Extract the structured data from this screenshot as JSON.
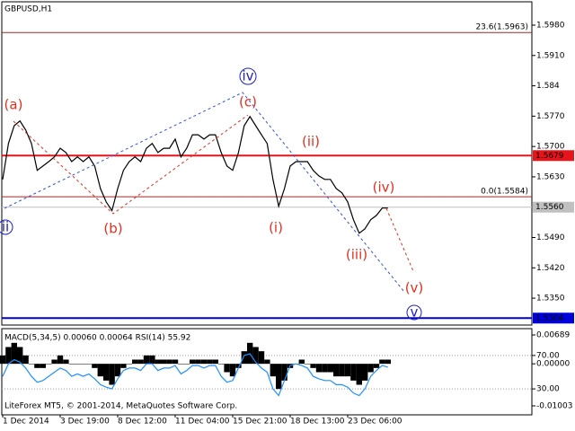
{
  "chart_data": [
    {
      "type": "line",
      "title": "GBPUSD,H1",
      "categories": [
        "1 Dec 2014",
        null,
        null,
        null,
        null,
        null,
        null,
        null,
        null,
        null,
        "3 Dec 19:00",
        null,
        null,
        null,
        null,
        null,
        null,
        null,
        null,
        null,
        "8 Dec 12:00",
        null,
        null,
        null,
        null,
        null,
        null,
        null,
        null,
        null,
        "11 Dec 04:00",
        null,
        null,
        null,
        null,
        null,
        null,
        null,
        null,
        null,
        "15 Dec 21:00",
        null,
        null,
        null,
        null,
        null,
        null,
        null,
        null,
        null,
        "18 Dec 13:00",
        null,
        null,
        null,
        null,
        null,
        null,
        null,
        null,
        null,
        "23 Dec 06:00",
        null,
        null,
        null,
        null,
        null,
        null,
        null
      ],
      "series": [
        {
          "name": "GBPUSD",
          "color": "#000000",
          "values": [
            1.5624,
            1.5707,
            1.5748,
            1.5759,
            1.5738,
            1.5707,
            1.5645,
            1.5655,
            1.5665,
            1.5676,
            1.5696,
            1.5686,
            1.5665,
            1.5676,
            1.5665,
            1.5676,
            1.5655,
            1.5603,
            1.5572,
            1.5552,
            1.5603,
            1.5645,
            1.5665,
            1.5676,
            1.5665,
            1.5696,
            1.5707,
            1.5686,
            1.5696,
            1.5696,
            1.5717,
            1.5676,
            1.5696,
            1.5727,
            1.5727,
            1.5717,
            1.5727,
            1.5727,
            1.5686,
            1.5655,
            1.5645,
            1.5686,
            1.5748,
            1.5769,
            1.5748,
            1.5727,
            1.5707,
            1.5624,
            1.5562,
            1.5603,
            1.5655,
            1.5665,
            1.5665,
            1.5665,
            1.5645,
            1.5632,
            1.5624,
            1.5624,
            1.5603,
            1.5593,
            1.5572,
            1.5531,
            1.55,
            1.551,
            1.5531,
            1.5541,
            1.5558,
            1.5558
          ]
        }
      ],
      "ylim": [
        1.5288,
        1.6038
      ],
      "yticks": [
        {
          "value": 1.598,
          "label": "1.5980"
        },
        {
          "value": 1.591,
          "label": "1.5910"
        },
        1.584,
        {
          "value": 1.577,
          "label": "1.5770"
        },
        {
          "value": 1.57,
          "label": "1.5700"
        },
        {
          "value": 1.563,
          "label": "1.5630"
        },
        {
          "value": 1.549,
          "label": "1.5490"
        },
        {
          "value": 1.542,
          "label": "1.5420"
        },
        {
          "value": 1.535,
          "label": "1.5350"
        }
      ],
      "fib_levels": [
        {
          "label": "23.6(1.5963)",
          "value": 1.5963,
          "color": "#a02828"
        },
        {
          "label": "0.0(1.5584)",
          "value": 1.5584,
          "color": "#a02828"
        }
      ],
      "price_levels": [
        {
          "value": 1.5679,
          "color": "#e8141c"
        },
        {
          "value": 1.556,
          "label": "1.5560",
          "color": "#c0c0c0"
        },
        {
          "value": 1.5304,
          "color": "#0000d8"
        }
      ],
      "annotations": [
        "(a)",
        "(b)",
        "(c)",
        "iv",
        "(ii)",
        "(i)",
        "(iii)",
        "(iv)",
        "(v)",
        "v",
        "ii"
      ]
    },
    {
      "type": "bar",
      "title": "MACD(5,34,5) 0.00060 0.00064 RSI(14) 55.92",
      "series": [
        {
          "name": "MACD",
          "color": "#000000",
          "values": [
            0.002,
            0.004,
            0.005,
            0.004,
            0.002,
            0,
            -0.001,
            -0.001,
            0,
            0.001,
            0.002,
            0.001,
            0,
            0,
            0,
            0,
            -0.001,
            -0.003,
            -0.004,
            -0.005,
            -0.003,
            -0.001,
            0,
            0.001,
            0.001,
            0.002,
            0.002,
            0.001,
            0.001,
            0.001,
            0.001,
            0,
            0,
            0.001,
            0.001,
            0.001,
            0.001,
            0.001,
            0,
            -0.002,
            -0.003,
            -0.001,
            0.003,
            0.005,
            0.004,
            0.003,
            0.001,
            -0.003,
            -0.006,
            -0.004,
            -0.001,
            0,
            0.001,
            0,
            -0.001,
            -0.002,
            -0.002,
            -0.002,
            -0.003,
            -0.003,
            -0.003,
            -0.004,
            -0.005,
            -0.004,
            -0.002,
            -0.001,
            0.001,
            0.001
          ]
        },
        {
          "name": "RSI(14)",
          "color": "#1e90ff",
          "axis": "y2",
          "values": [
            45,
            60,
            65,
            62,
            55,
            45,
            38,
            40,
            45,
            50,
            55,
            52,
            45,
            48,
            45,
            48,
            42,
            35,
            32,
            30,
            42,
            52,
            55,
            55,
            52,
            60,
            60,
            52,
            55,
            55,
            58,
            48,
            52,
            58,
            58,
            55,
            58,
            58,
            45,
            38,
            40,
            55,
            70,
            72,
            62,
            55,
            50,
            30,
            22,
            40,
            58,
            60,
            58,
            55,
            45,
            42,
            40,
            40,
            35,
            35,
            32,
            25,
            22,
            30,
            45,
            52,
            58,
            56
          ]
        }
      ],
      "ylim": [
        -0.01196,
        0.00796
      ],
      "yticks": [
        0.00689,
        {
          "value": 0,
          "label": "0.00000"
        },
        -0.01003
      ],
      "y2lim": [
        0,
        100
      ],
      "y2ticks": [
        {
          "value": 70,
          "label": "70.00"
        },
        {
          "value": 30,
          "label": "30.00"
        }
      ]
    }
  ],
  "footer": "LiteForex MT5, © 2001-2014, MetaQuotes Software Corp."
}
